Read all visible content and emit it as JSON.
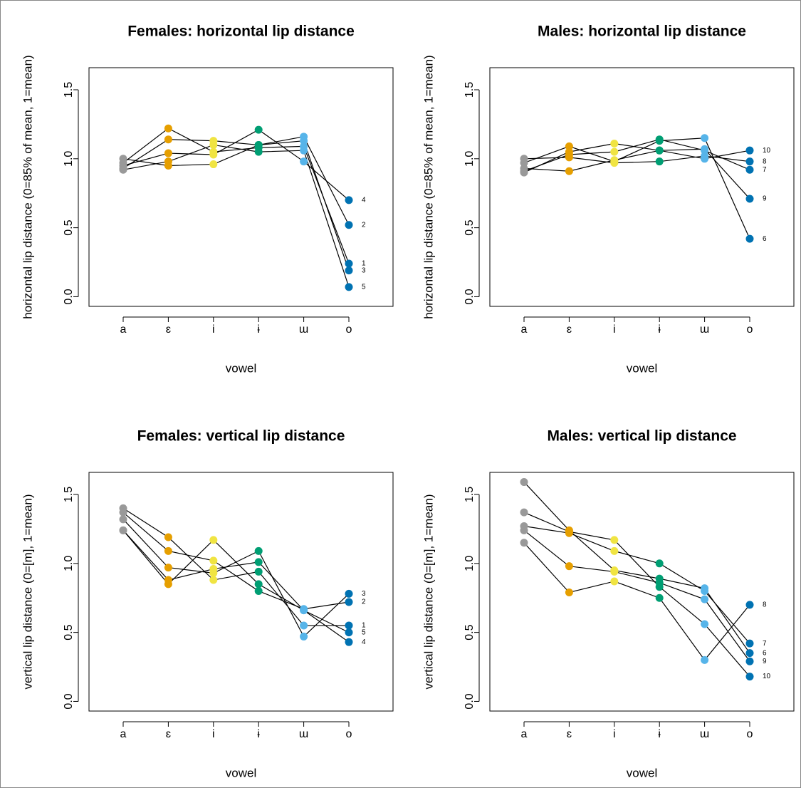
{
  "chart_data": [
    {
      "type": "line",
      "title": "Females: horizontal lip distance",
      "x_label": "vowel",
      "y_label": "horizontal lip distance (0=85% of mean, 1=mean)",
      "categories": [
        "a",
        "ɛ",
        "i",
        "ɨ",
        "ɯ",
        "o"
      ],
      "point_colors": [
        "#999999",
        "#E69F00",
        "#F0E442",
        "#009E73",
        "#56B4E9",
        "#0072B2"
      ],
      "ylim": [
        -0.07,
        1.66
      ],
      "yticks": [
        {
          "value": 0,
          "label": "0.0"
        },
        0.5,
        {
          "value": 1,
          "label": "1.0"
        },
        1.5
      ],
      "series": [
        {
          "name": "1",
          "color": "#000000",
          "values": [
            0.97,
            1.22,
            1.05,
            1.08,
            1.09,
            0.24
          ]
        },
        {
          "name": "2",
          "color": "#000000",
          "values": [
            0.93,
            1.14,
            1.13,
            1.1,
            1.16,
            0.52
          ]
        },
        {
          "name": "3",
          "color": "#000000",
          "values": [
            1.0,
            0.95,
            0.96,
            1.1,
            1.13,
            0.19
          ]
        },
        {
          "name": "4",
          "color": "#000000",
          "values": [
            0.95,
            1.04,
            1.03,
            1.21,
            0.98,
            0.7
          ]
        },
        {
          "name": "5",
          "color": "#000000",
          "values": [
            0.92,
            0.98,
            1.1,
            1.05,
            1.06,
            0.07
          ]
        }
      ]
    },
    {
      "type": "line",
      "title": "Males: horizontal lip distance",
      "x_label": "vowel",
      "y_label": "horizontal lip distance (0=85% of mean, 1=mean)",
      "categories": [
        "a",
        "ɛ",
        "i",
        "ɨ",
        "ɯ",
        "o"
      ],
      "point_colors": [
        "#999999",
        "#E69F00",
        "#F0E442",
        "#009E73",
        "#56B4E9",
        "#0072B2"
      ],
      "ylim": [
        -0.07,
        1.66
      ],
      "yticks": [
        {
          "value": 0,
          "label": "0.0"
        },
        0.5,
        {
          "value": 1,
          "label": "1.0"
        },
        1.5
      ],
      "series": [
        {
          "name": "6",
          "color": "#000000",
          "values": [
            0.97,
            1.09,
            0.98,
            1.13,
            1.15,
            0.42
          ]
        },
        {
          "name": "7",
          "color": "#000000",
          "values": [
            0.91,
            1.03,
            1.05,
            1.14,
            1.06,
            0.92
          ]
        },
        {
          "name": "8",
          "color": "#000000",
          "values": [
            1.0,
            1.01,
            0.97,
            0.98,
            1.02,
            0.98
          ]
        },
        {
          "name": "9",
          "color": "#000000",
          "values": [
            0.93,
            0.91,
            0.99,
            1.06,
            1.07,
            0.71
          ]
        },
        {
          "name": "10",
          "color": "#000000",
          "values": [
            0.9,
            1.05,
            1.11,
            1.06,
            1.0,
            1.06
          ]
        }
      ]
    },
    {
      "type": "line",
      "title": "Females: vertical lip distance",
      "x_label": "vowel",
      "y_label": "vertical lip distance (0=[m], 1=mean)",
      "categories": [
        "a",
        "ɛ",
        "i",
        "ɨ",
        "ɯ",
        "o"
      ],
      "point_colors": [
        "#999999",
        "#E69F00",
        "#F0E442",
        "#009E73",
        "#56B4E9",
        "#0072B2"
      ],
      "ylim": [
        -0.07,
        1.66
      ],
      "yticks": [
        {
          "value": 0,
          "label": "0.0"
        },
        0.5,
        {
          "value": 1,
          "label": "1.0"
        },
        1.5
      ],
      "series": [
        {
          "name": "1",
          "color": "#000000",
          "values": [
            1.4,
            1.19,
            0.88,
            0.94,
            0.55,
            0.55
          ]
        },
        {
          "name": "2",
          "color": "#000000",
          "values": [
            1.37,
            1.09,
            1.02,
            0.8,
            0.67,
            0.72
          ]
        },
        {
          "name": "3",
          "color": "#000000",
          "values": [
            1.32,
            0.97,
            0.93,
            1.09,
            0.47,
            0.78
          ]
        },
        {
          "name": "4",
          "color": "#000000",
          "values": [
            1.24,
            0.85,
            1.17,
            0.85,
            0.66,
            0.43
          ]
        },
        {
          "name": "5",
          "color": "#000000",
          "values": [
            1.24,
            0.88,
            0.96,
            1.01,
            0.66,
            0.5
          ]
        }
      ]
    },
    {
      "type": "line",
      "title": "Males: vertical lip distance",
      "x_label": "vowel",
      "y_label": "vertical lip distance (0=[m], 1=mean)",
      "categories": [
        "a",
        "ɛ",
        "i",
        "ɨ",
        "ɯ",
        "o"
      ],
      "point_colors": [
        "#999999",
        "#E69F00",
        "#F0E442",
        "#009E73",
        "#56B4E9",
        "#0072B2"
      ],
      "ylim": [
        -0.07,
        1.66
      ],
      "yticks": [
        {
          "value": 0,
          "label": "0.0"
        },
        0.5,
        {
          "value": 1,
          "label": "1.0"
        },
        1.5
      ],
      "series": [
        {
          "name": "6",
          "color": "#000000",
          "values": [
            1.59,
            1.24,
            0.95,
            0.89,
            0.82,
            0.35
          ]
        },
        {
          "name": "7",
          "color": "#000000",
          "values": [
            1.27,
            1.22,
            1.09,
            1.0,
            0.8,
            0.42
          ]
        },
        {
          "name": "8",
          "color": "#000000",
          "values": [
            1.15,
            0.79,
            0.87,
            0.75,
            0.3,
            0.7
          ]
        },
        {
          "name": "9",
          "color": "#000000",
          "values": [
            1.24,
            0.98,
            0.94,
            0.86,
            0.74,
            0.29
          ]
        },
        {
          "name": "10",
          "color": "#000000",
          "values": [
            1.37,
            1.23,
            1.17,
            0.83,
            0.56,
            0.18
          ]
        }
      ]
    }
  ]
}
